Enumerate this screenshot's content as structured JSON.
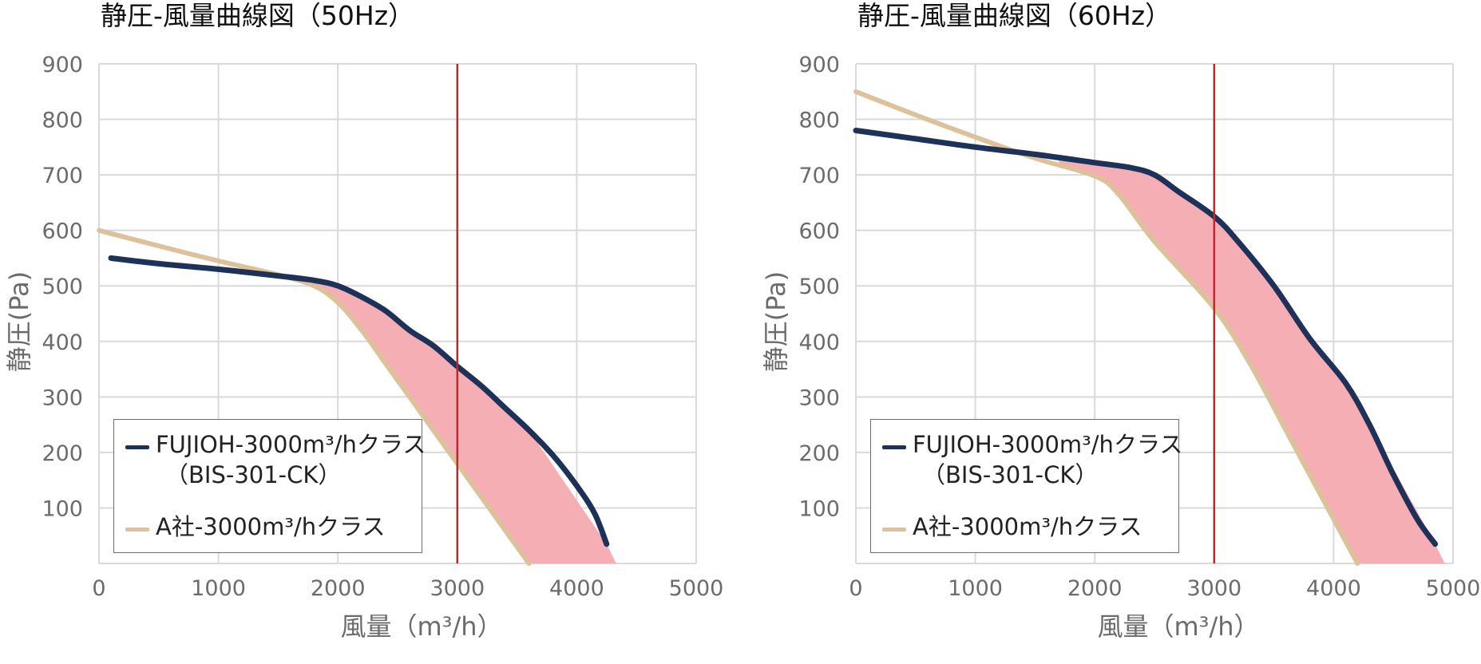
{
  "colors": {
    "fujioh": "#1d3159",
    "competitor": "#dcc19a",
    "fill": "#f6aeb5",
    "marker": "#d0202a",
    "grid": "#d9d9d9"
  },
  "legend": {
    "fujioh_label": "FUJIOH-3000m³/hクラス",
    "fujioh_sub": "（BIS-301-CK）",
    "competitor_label": "A社-3000m³/hクラス"
  },
  "chart_data": [
    {
      "type": "line",
      "title": "静圧-風量曲線図（50Hz）",
      "xlabel": "風量（m³/h）",
      "ylabel": "静圧(Pa)",
      "xlim": [
        0,
        5000
      ],
      "ylim": [
        0,
        900
      ],
      "xticks": [
        0,
        1000,
        2000,
        3000,
        4000,
        5000
      ],
      "yticks": [
        100,
        200,
        300,
        400,
        500,
        600,
        700,
        800,
        900
      ],
      "grid": true,
      "legend_position": "bottom-left",
      "vertical_line_x": 3000,
      "series": [
        {
          "name": "FUJIOH-3000m³/hクラス（BIS-301-CK）",
          "points": [
            [
              100,
              550
            ],
            [
              500,
              540
            ],
            [
              1000,
              530
            ],
            [
              1500,
              518
            ],
            [
              1800,
              510
            ],
            [
              2000,
              500
            ],
            [
              2200,
              480
            ],
            [
              2400,
              455
            ],
            [
              2600,
              420
            ],
            [
              2800,
              392
            ],
            [
              3000,
              355
            ],
            [
              3200,
              320
            ],
            [
              3400,
              280
            ],
            [
              3600,
              240
            ],
            [
              3800,
              195
            ],
            [
              4000,
              140
            ],
            [
              4150,
              90
            ],
            [
              4250,
              35
            ]
          ]
        },
        {
          "name": "A社-3000m³/hクラス",
          "points": [
            [
              0,
              600
            ],
            [
              500,
              572
            ],
            [
              1000,
              545
            ],
            [
              1500,
              520
            ],
            [
              1800,
              500
            ],
            [
              2000,
              470
            ],
            [
              2200,
              420
            ],
            [
              2400,
              360
            ],
            [
              2600,
              300
            ],
            [
              2800,
              240
            ],
            [
              3000,
              180
            ],
            [
              3200,
              120
            ],
            [
              3400,
              60
            ],
            [
              3600,
              0
            ]
          ]
        }
      ]
    },
    {
      "type": "line",
      "title": "静圧-風量曲線図（60Hz）",
      "xlabel": "風量（m³/h）",
      "ylabel": "静圧(Pa)",
      "xlim": [
        0,
        5000
      ],
      "ylim": [
        0,
        900
      ],
      "xticks": [
        0,
        1000,
        2000,
        3000,
        4000,
        5000
      ],
      "yticks": [
        100,
        200,
        300,
        400,
        500,
        600,
        700,
        800,
        900
      ],
      "grid": true,
      "legend_position": "bottom-left",
      "vertical_line_x": 3000,
      "series": [
        {
          "name": "FUJIOH-3000m³/hクラス（BIS-301-CK）",
          "points": [
            [
              0,
              780
            ],
            [
              500,
              765
            ],
            [
              1000,
              750
            ],
            [
              1500,
              737
            ],
            [
              2000,
              722
            ],
            [
              2300,
              713
            ],
            [
              2500,
              700
            ],
            [
              2700,
              670
            ],
            [
              3000,
              625
            ],
            [
              3200,
              580
            ],
            [
              3500,
              500
            ],
            [
              3800,
              405
            ],
            [
              4100,
              325
            ],
            [
              4300,
              250
            ],
            [
              4500,
              160
            ],
            [
              4700,
              80
            ],
            [
              4850,
              35
            ]
          ]
        },
        {
          "name": "A社-3000m³/hクラス",
          "points": [
            [
              0,
              850
            ],
            [
              500,
              808
            ],
            [
              1000,
              768
            ],
            [
              1500,
              730
            ],
            [
              2000,
              698
            ],
            [
              2200,
              665
            ],
            [
              2500,
              580
            ],
            [
              3000,
              460
            ],
            [
              3300,
              360
            ],
            [
              3600,
              240
            ],
            [
              3900,
              120
            ],
            [
              4200,
              0
            ]
          ]
        }
      ]
    }
  ]
}
